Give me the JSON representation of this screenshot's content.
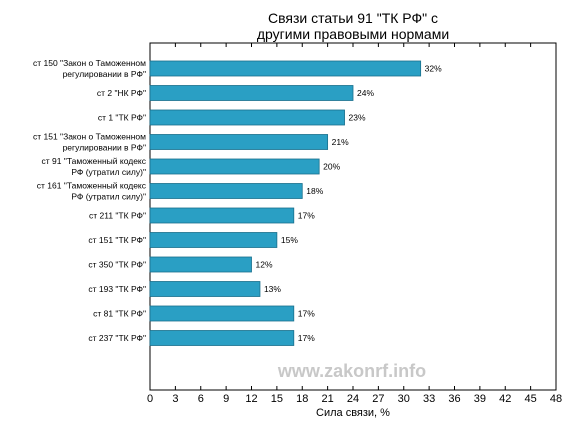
{
  "chart_data": {
    "type": "bar",
    "orientation": "horizontal",
    "title": [
      "Связи статьи 91 \"ТК РФ\" с",
      "другими правовыми нормами"
    ],
    "xlabel": "Сила связи, %",
    "ylabel": "",
    "xlim": [
      0,
      48
    ],
    "xticks": [
      "0",
      "3",
      "6",
      "9",
      "12",
      "15",
      "18",
      "21",
      "24",
      "27",
      "30",
      "33",
      "36",
      "39",
      "42",
      "45",
      "48"
    ],
    "bar_color": "#2a9fc4",
    "categories": [
      [
        "ст 150 \"Закон о Таможенном",
        "регулировании в РФ\""
      ],
      [
        "ст 2 \"НК РФ\""
      ],
      [
        "ст 1 \"ТК РФ\""
      ],
      [
        "ст 151 \"Закон о Таможенном",
        "регулировании в РФ\""
      ],
      [
        "ст 91 \"Таможенный кодекс",
        "РФ (утратил силу)\""
      ],
      [
        "ст 161 \"Таможенный кодекс",
        "РФ (утратил силу)\""
      ],
      [
        "ст 211 \"ТК РФ\""
      ],
      [
        "ст 151 \"ТК РФ\""
      ],
      [
        "ст 350 \"ТК РФ\""
      ],
      [
        "ст 193 \"ТК РФ\""
      ],
      [
        "ст 81 \"ТК РФ\""
      ],
      [
        "ст 237 \"ТК РФ\""
      ]
    ],
    "values": [
      32,
      24,
      23,
      21,
      20,
      18,
      17,
      15,
      12,
      13,
      17,
      17
    ],
    "value_labels": [
      "32%",
      "24%",
      "23%",
      "21%",
      "20%",
      "18%",
      "17%",
      "15%",
      "12%",
      "13%",
      "17%",
      "17%"
    ]
  },
  "watermark": "www.zakonrf.info"
}
